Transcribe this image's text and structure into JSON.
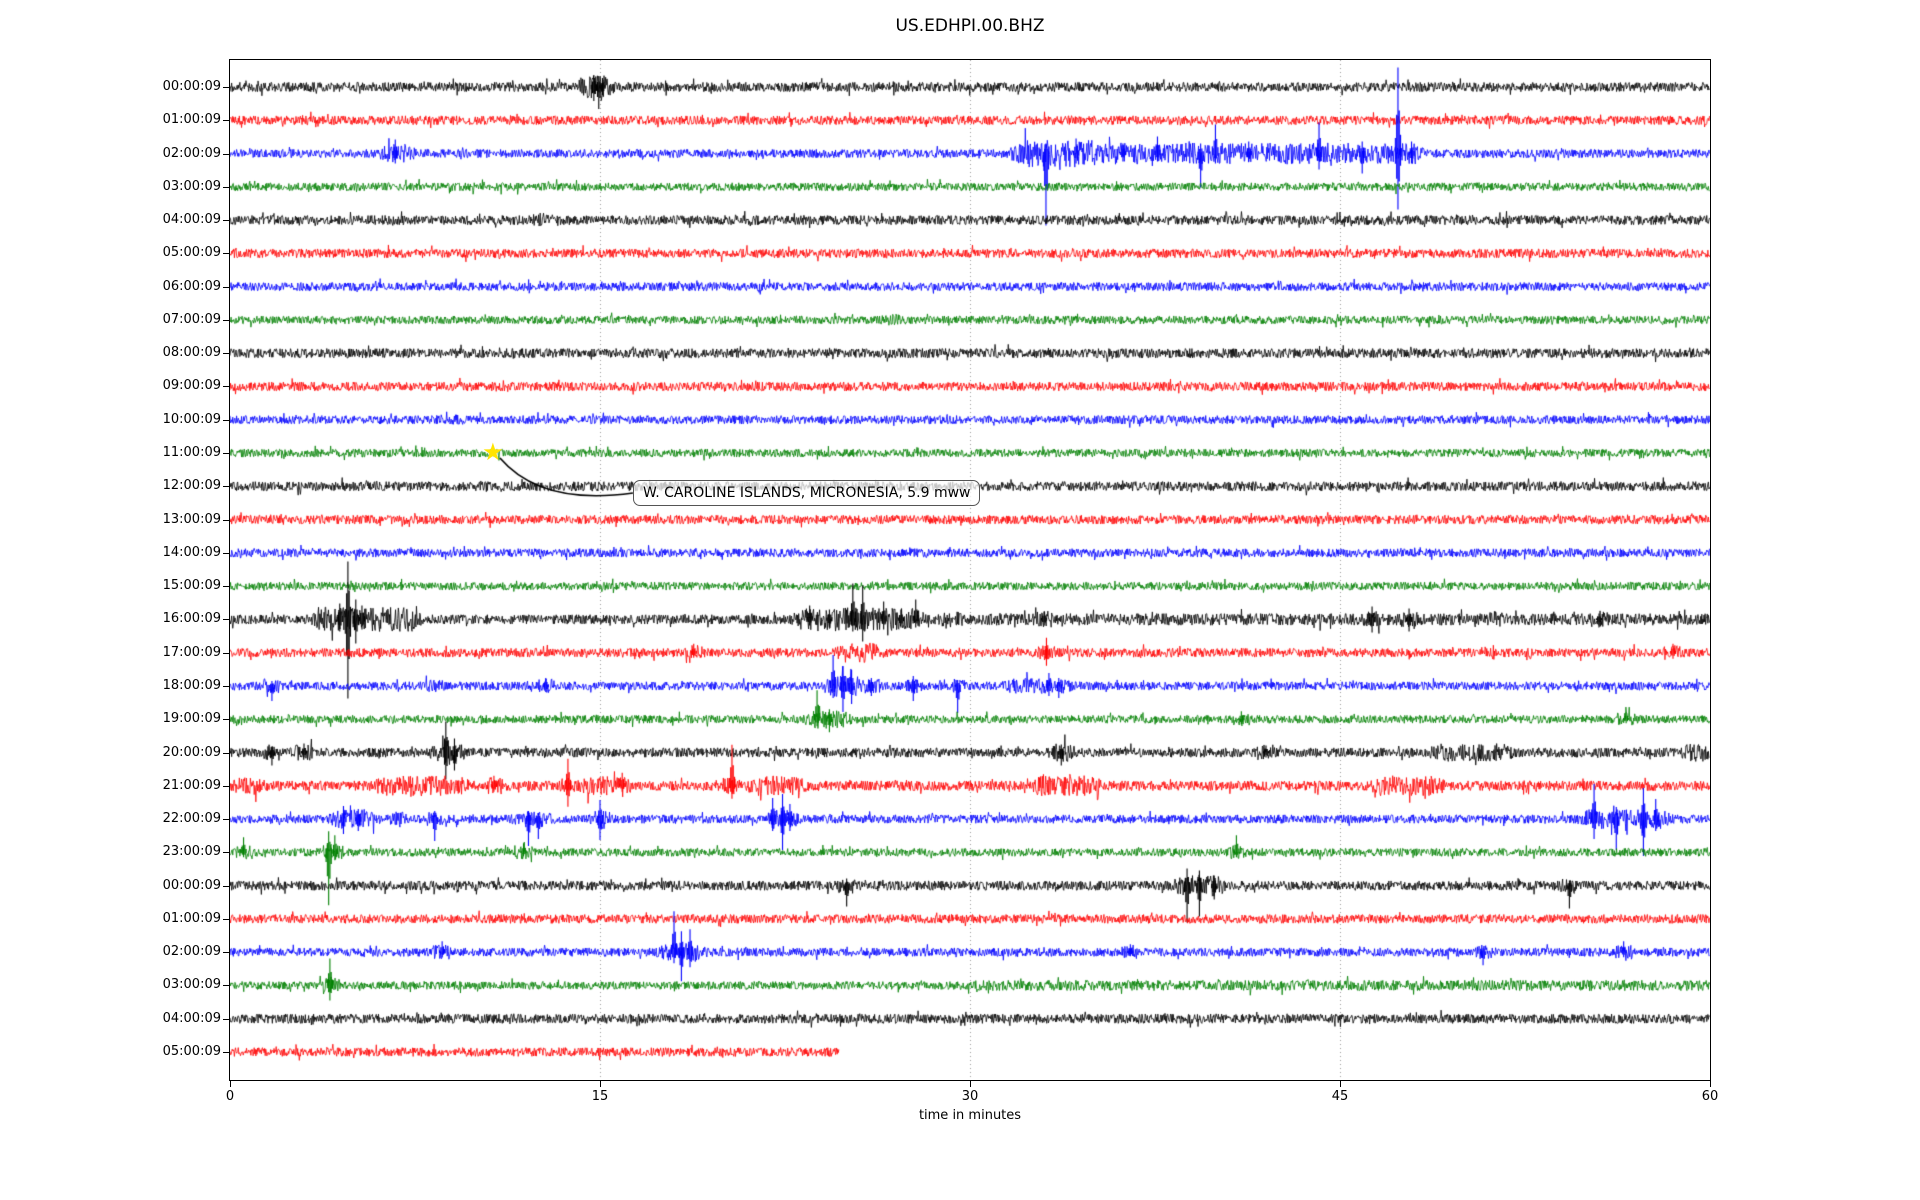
{
  "page": {
    "background": "#ffffff"
  },
  "chart_data": {
    "type": "line",
    "subtype": "helicorder-dayplot",
    "title": "US.EDHPI.00.BHZ",
    "xlabel": "time in minutes",
    "x_ticks": [
      0,
      15,
      30,
      45,
      60
    ],
    "x_range_minutes": [
      0,
      60
    ],
    "minutes_per_row": 60,
    "grid_minutes": [
      15,
      30,
      45
    ],
    "grid_color": "#999999",
    "spine_color": "#000000",
    "color_cycle": [
      "#000000",
      "#ff0000",
      "#0000ff",
      "#008000"
    ],
    "annotation": {
      "text": "W. CAROLINE ISLANDS, MICRONESIA, 5.9 mww",
      "star_glyph": "★",
      "star_color": "#ffe400",
      "star_row_index": 11,
      "star_row_label": "11:00:09",
      "star_minute": 10.66,
      "leader_color": "#000000"
    },
    "bands_format": "[startMinute, endMinute, amplitudeMultiplier]",
    "spikes_format": "[minute, upPx, downPx]",
    "rows": [
      {
        "label": "00:00:09",
        "namp": 1.05,
        "bands": [
          [
            14.3,
            15.4,
            2.6
          ]
        ],
        "spikes": [
          [
            14.75,
            12,
            14
          ],
          [
            14.95,
            11,
            22
          ],
          [
            15.1,
            9,
            8
          ]
        ]
      },
      {
        "label": "01:00:09",
        "namp": 1.0,
        "bands": [],
        "spikes": []
      },
      {
        "label": "02:00:09",
        "namp": 0.95,
        "bands": [
          [
            6.2,
            7.4,
            2.2
          ],
          [
            31.8,
            35.2,
            3.2
          ],
          [
            35.2,
            48.3,
            2.5
          ]
        ],
        "spikes": [
          [
            6.7,
            14,
            10
          ],
          [
            33.08,
            10,
            72
          ],
          [
            34.3,
            15,
            10
          ],
          [
            36.2,
            10,
            8
          ],
          [
            37.6,
            17,
            8
          ],
          [
            39.35,
            10,
            34
          ],
          [
            39.95,
            29,
            10
          ],
          [
            41.3,
            12,
            8
          ],
          [
            44.15,
            31,
            16
          ],
          [
            45.9,
            12,
            20
          ],
          [
            47.35,
            86,
            56
          ],
          [
            47.9,
            12,
            10
          ]
        ]
      },
      {
        "label": "03:00:09",
        "namp": 0.9,
        "bands": [],
        "spikes": []
      },
      {
        "label": "04:00:09",
        "namp": 1.05,
        "bands": [
          [
            12.4,
            12.9,
            1.8
          ]
        ],
        "spikes": []
      },
      {
        "label": "05:00:09",
        "namp": 1.0,
        "bands": [],
        "spikes": []
      },
      {
        "label": "06:00:09",
        "namp": 0.95,
        "bands": [],
        "spikes": []
      },
      {
        "label": "07:00:09",
        "namp": 0.9,
        "bands": [
          [
            26.5,
            27.2,
            1.5
          ]
        ],
        "spikes": []
      },
      {
        "label": "08:00:09",
        "namp": 1.05,
        "bands": [],
        "spikes": []
      },
      {
        "label": "09:00:09",
        "namp": 1.0,
        "bands": [],
        "spikes": []
      },
      {
        "label": "10:00:09",
        "namp": 0.95,
        "bands": [
          [
            8.5,
            9.3,
            1.4
          ]
        ],
        "spikes": []
      },
      {
        "label": "11:00:09",
        "namp": 0.9,
        "bands": [],
        "spikes": []
      },
      {
        "label": "12:00:09",
        "namp": 1.05,
        "bands": [],
        "spikes": []
      },
      {
        "label": "13:00:09",
        "namp": 1.0,
        "bands": [],
        "spikes": []
      },
      {
        "label": "14:00:09",
        "namp": 0.95,
        "bands": [],
        "spikes": []
      },
      {
        "label": "15:00:09",
        "namp": 0.9,
        "bands": [],
        "spikes": []
      },
      {
        "label": "16:00:09",
        "namp": 1.05,
        "bands": [
          [
            3.5,
            7.6,
            2.6
          ],
          [
            23.0,
            28.0,
            2.5
          ],
          [
            28.8,
            29.6,
            2.0
          ],
          [
            30.5,
            60,
            1.25
          ],
          [
            51.0,
            51.6,
            1.8
          ]
        ],
        "spikes": [
          [
            4.45,
            16,
            12
          ],
          [
            4.78,
            58,
            79
          ],
          [
            5.1,
            20,
            24
          ],
          [
            5.35,
            14,
            10
          ],
          [
            23.5,
            14,
            6
          ],
          [
            24.3,
            10,
            8
          ],
          [
            25.25,
            36,
            12
          ],
          [
            25.65,
            34,
            22
          ],
          [
            26.5,
            18,
            10
          ],
          [
            27.2,
            10,
            8
          ],
          [
            27.8,
            20,
            8
          ],
          [
            33.0,
            8,
            6
          ],
          [
            46.3,
            13,
            13
          ],
          [
            47.8,
            11,
            12
          ],
          [
            55.5,
            6,
            5
          ]
        ]
      },
      {
        "label": "17:00:09",
        "namp": 1.0,
        "bands": [
          [
            24.7,
            26.3,
            2.2
          ]
        ],
        "spikes": [
          [
            18.8,
            9,
            5
          ],
          [
            33.1,
            15,
            13
          ],
          [
            58.5,
            9,
            6
          ]
        ]
      },
      {
        "label": "18:00:09",
        "namp": 0.95,
        "bands": [
          [
            8.0,
            8.6,
            1.8
          ],
          [
            24.2,
            25.6,
            2.5
          ],
          [
            31.5,
            34.0,
            1.8
          ]
        ],
        "spikes": [
          [
            1.7,
            5,
            15
          ],
          [
            12.8,
            8,
            6
          ],
          [
            24.45,
            31,
            12
          ],
          [
            24.85,
            20,
            26
          ],
          [
            25.2,
            16,
            18
          ],
          [
            26.0,
            8,
            10
          ],
          [
            27.7,
            10,
            15
          ],
          [
            29.5,
            6,
            27
          ],
          [
            33.2,
            13,
            10
          ],
          [
            33.6,
            8,
            12
          ]
        ]
      },
      {
        "label": "19:00:09",
        "namp": 0.9,
        "bands": [
          [
            23.4,
            25.2,
            2.3
          ]
        ],
        "spikes": [
          [
            23.8,
            29,
            7
          ],
          [
            24.3,
            10,
            13
          ],
          [
            41.0,
            8,
            5
          ],
          [
            56.6,
            7,
            4
          ]
        ]
      },
      {
        "label": "20:00:09",
        "namp": 1.05,
        "bands": [
          [
            8.3,
            9.4,
            2.6
          ],
          [
            33.4,
            34.1,
            2.3
          ],
          [
            48.8,
            51.9,
            1.9
          ],
          [
            58.9,
            60,
            1.9
          ]
        ],
        "spikes": [
          [
            1.7,
            5,
            13
          ],
          [
            3.0,
            9,
            5
          ],
          [
            8.75,
            31,
            27
          ],
          [
            9.1,
            14,
            18
          ],
          [
            33.7,
            8,
            13
          ],
          [
            42.0,
            7,
            5
          ]
        ]
      },
      {
        "label": "21:00:09",
        "namp": 1.1,
        "bands": [
          [
            0,
            1.3,
            1.8
          ],
          [
            6.0,
            9.6,
            2.1
          ],
          [
            14.2,
            15.6,
            1.9
          ],
          [
            21.1,
            23.2,
            2.0
          ],
          [
            32.6,
            35.2,
            2.1
          ],
          [
            46.4,
            49.1,
            2.1
          ]
        ],
        "spikes": [
          [
            10.7,
            10,
            6
          ],
          [
            13.7,
            27,
            21
          ],
          [
            15.9,
            13,
            6
          ],
          [
            20.35,
            41,
            13
          ]
        ]
      },
      {
        "label": "22:00:09",
        "namp": 0.95,
        "bands": [
          [
            4.2,
            5.9,
            2.3
          ],
          [
            6.6,
            7.1,
            2.0
          ],
          [
            11.6,
            13.0,
            1.9
          ],
          [
            14.7,
            15.4,
            2.3
          ],
          [
            21.8,
            22.9,
            2.3
          ],
          [
            54.8,
            58.3,
            2.3
          ]
        ],
        "spikes": [
          [
            4.6,
            13,
            15
          ],
          [
            5.2,
            10,
            12
          ],
          [
            8.3,
            8,
            22
          ],
          [
            12.1,
            8,
            27
          ],
          [
            12.5,
            6,
            20
          ],
          [
            15.0,
            19,
            21
          ],
          [
            22.0,
            21,
            12
          ],
          [
            22.4,
            25,
            31
          ],
          [
            22.7,
            15,
            12
          ],
          [
            55.3,
            35,
            20
          ],
          [
            56.2,
            12,
            31
          ],
          [
            57.3,
            31,
            37
          ],
          [
            57.8,
            20,
            12
          ]
        ]
      },
      {
        "label": "23:00:09",
        "namp": 0.9,
        "bands": [
          [
            3.7,
            4.4,
            2.5
          ]
        ],
        "spikes": [
          [
            0.55,
            15,
            5
          ],
          [
            4.0,
            21,
            53
          ],
          [
            4.25,
            17,
            8
          ],
          [
            11.9,
            9,
            4
          ],
          [
            40.8,
            17,
            5
          ]
        ]
      },
      {
        "label": "00:00:09",
        "namp": 1.05,
        "bands": [
          [
            38.4,
            40.2,
            2.3
          ]
        ],
        "spikes": [
          [
            25.0,
            7,
            21
          ],
          [
            38.8,
            17,
            37
          ],
          [
            39.3,
            15,
            31
          ],
          [
            39.9,
            10,
            14
          ],
          [
            54.3,
            5,
            23
          ]
        ]
      },
      {
        "label": "01:00:09",
        "namp": 1.0,
        "bands": [],
        "spikes": []
      },
      {
        "label": "02:00:09",
        "namp": 0.95,
        "bands": [
          [
            17.5,
            19.2,
            2.3
          ]
        ],
        "spikes": [
          [
            8.6,
            11,
            5
          ],
          [
            18.0,
            41,
            11
          ],
          [
            18.3,
            21,
            29
          ],
          [
            18.65,
            23,
            15
          ],
          [
            36.5,
            8,
            4
          ],
          [
            50.8,
            4,
            13
          ],
          [
            56.5,
            11,
            5
          ]
        ]
      },
      {
        "label": "03:00:09",
        "namp": 0.9,
        "bands": [
          [
            3.8,
            4.4,
            2.2
          ],
          [
            30,
            60,
            1.3
          ]
        ],
        "spikes": [
          [
            4.05,
            27,
            15
          ]
        ]
      },
      {
        "label": "04:00:09",
        "namp": 1.05,
        "bands": [],
        "spikes": []
      },
      {
        "label": "05:00:09",
        "namp": 1.0,
        "end_minute": 24.7,
        "bands": [],
        "spikes": []
      }
    ]
  }
}
